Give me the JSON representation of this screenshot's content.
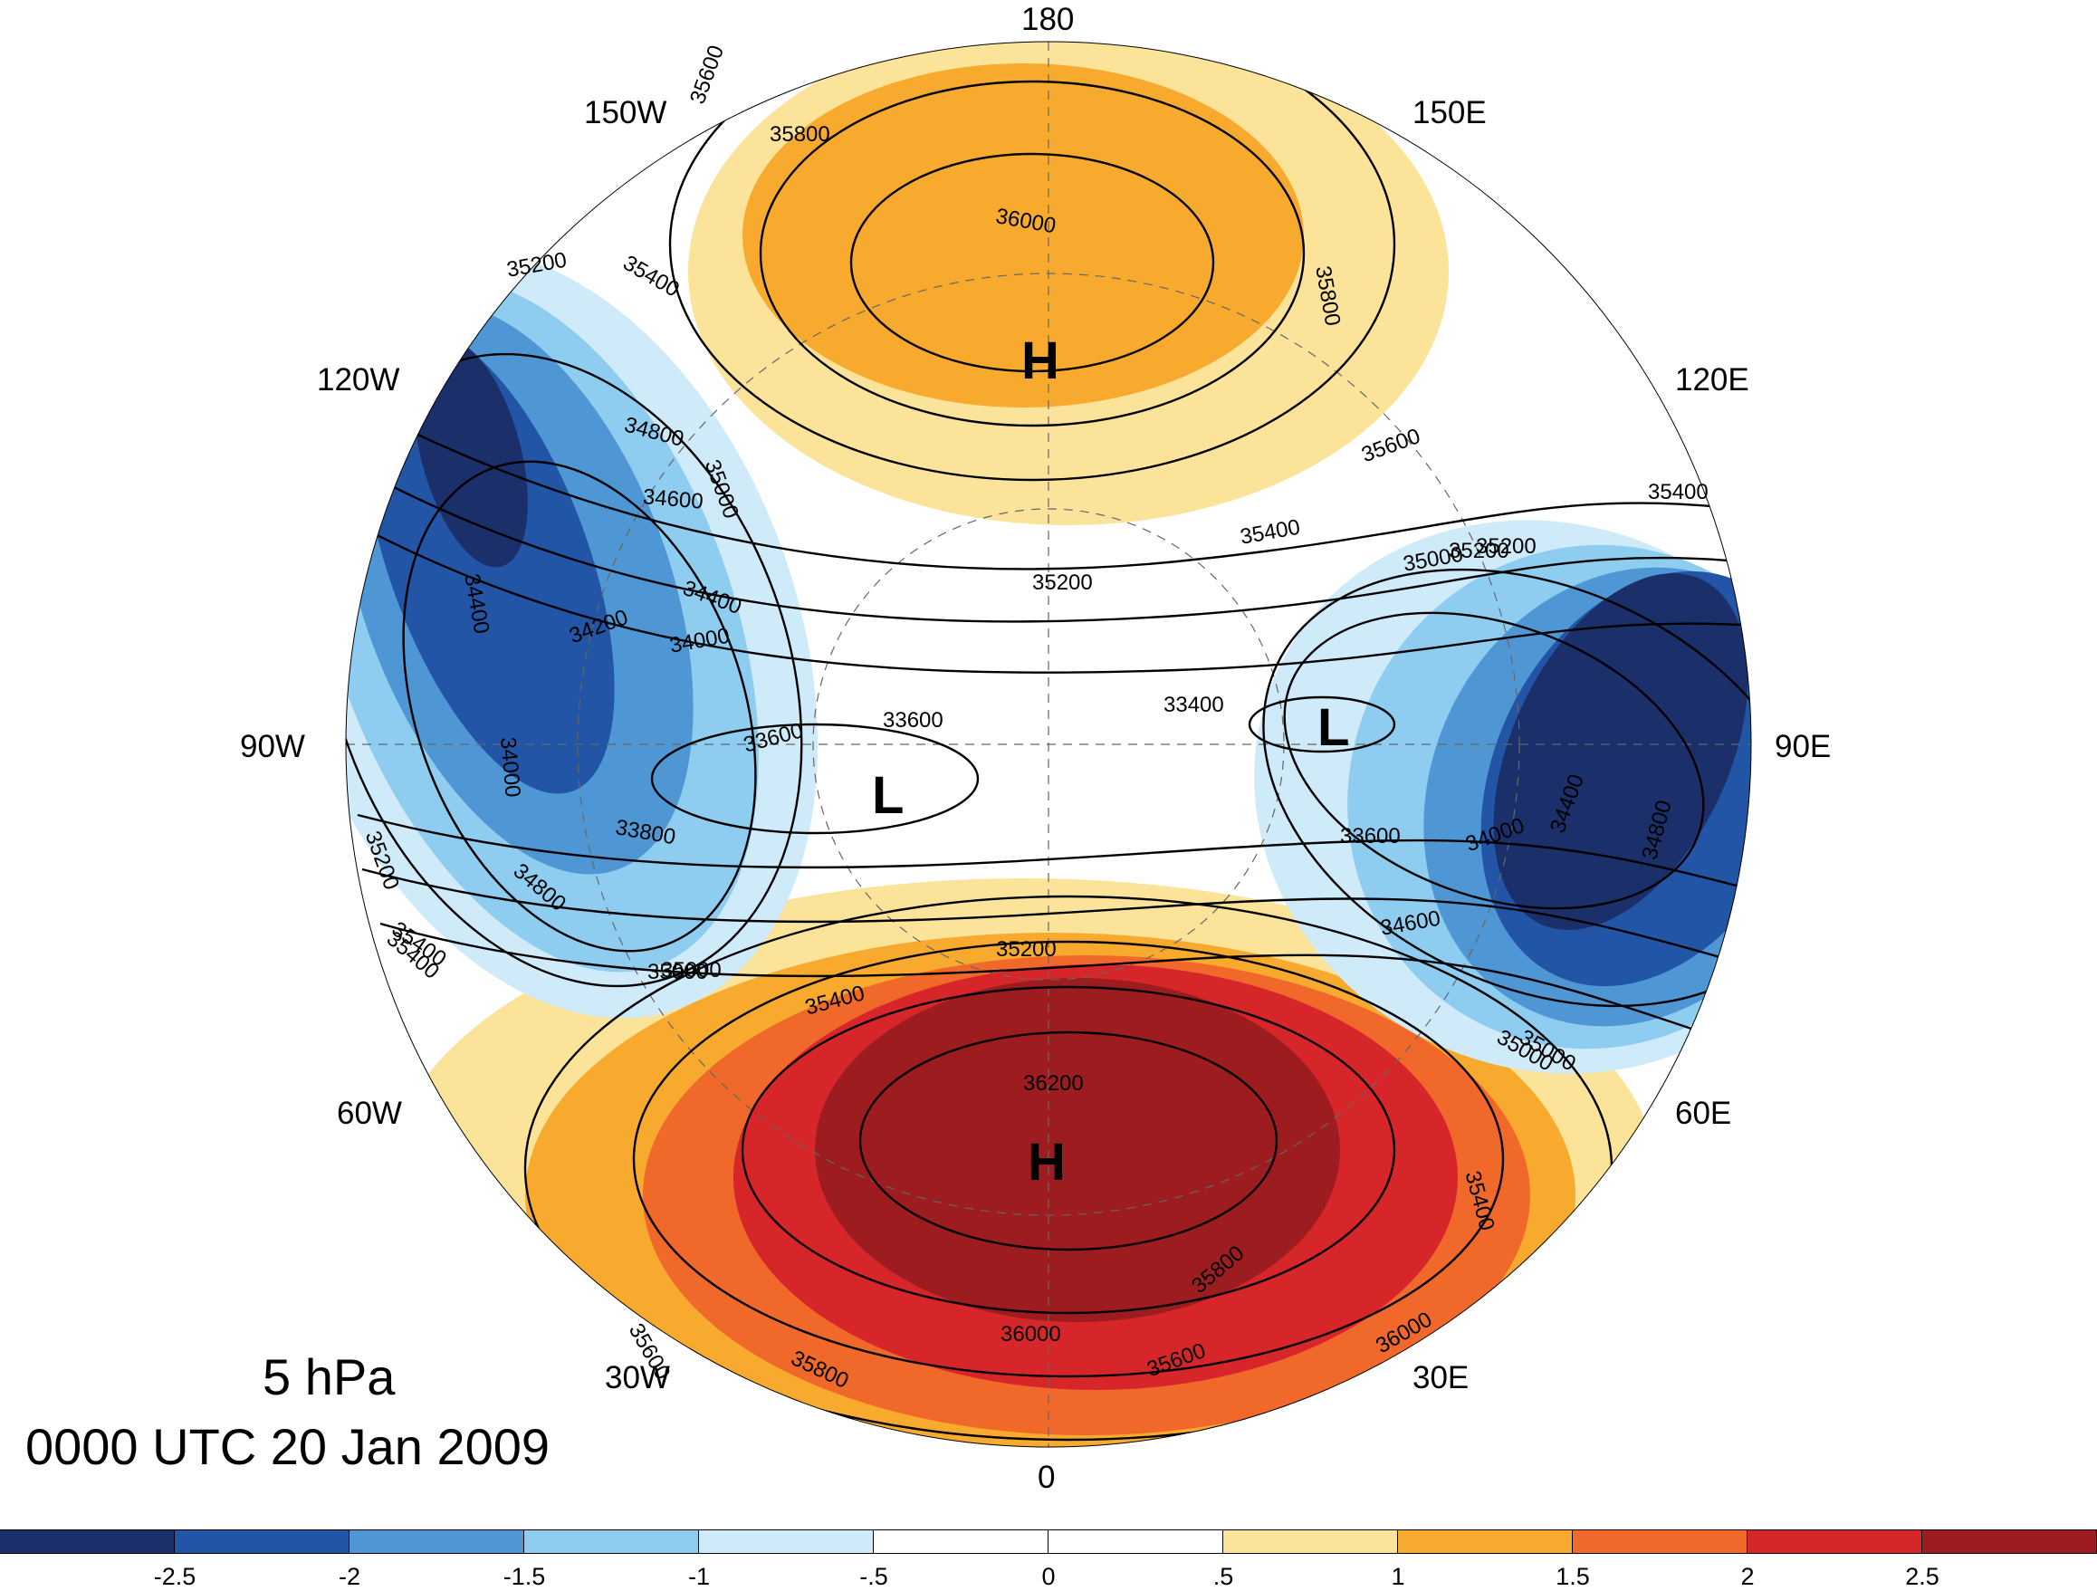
{
  "title": {
    "level": "5 hPa",
    "datetime": "0000 UTC 20 Jan 2009"
  },
  "longitude_labels": {
    "n180": "180",
    "w150": "150W",
    "e150": "150E",
    "w120": "120W",
    "e120": "120E",
    "w90": "90W",
    "e90": "90E",
    "w60": "60W",
    "e60": "60E",
    "w30": "30W",
    "e30": "30E",
    "s0": "0"
  },
  "pressure_centers": {
    "high_pacific": "H",
    "high_atlantic": "H",
    "low_west": "L",
    "low_east": "L"
  },
  "contour_labels": [
    "35600",
    "35800",
    "36000",
    "35800",
    "35400",
    "35200",
    "34800",
    "35000",
    "34600",
    "34400",
    "34200",
    "34000",
    "34400",
    "34000",
    "33600",
    "33600",
    "33400",
    "33800",
    "35600",
    "35400",
    "35200",
    "35000",
    "35200",
    "35400",
    "35200",
    "33600",
    "34000",
    "34400",
    "34800",
    "34600",
    "35000",
    "35400",
    "35200",
    "35400",
    "36200",
    "36000",
    "35800",
    "35600",
    "35600",
    "36000",
    "35800",
    "35400",
    "35000",
    "34800",
    "35200",
    "35400",
    "35000",
    "35000"
  ],
  "colorbar": {
    "ticks": [
      "-2.5",
      "-2",
      "-1.5",
      "-1",
      "-.5",
      "0",
      ".5",
      "1",
      "1.5",
      "2",
      "2.5"
    ],
    "colors": [
      "#1b2f6b",
      "#2255a6",
      "#4f97d4",
      "#8ecdf0",
      "#cfeaf8",
      "#ffffff",
      "#ffffff",
      "#fbe49a",
      "#f8aa2e",
      "#f0682a",
      "#d7262a",
      "#9c1c1f"
    ]
  },
  "shading_colors": {
    "strong_positive": "#9c1c1f",
    "positive2": "#d7262a",
    "positive15": "#f0682a",
    "positive1": "#f8aa2e",
    "positive05": "#fbe49a",
    "negative05": "#cfeaf8",
    "negative1": "#8ecdf0",
    "negative15": "#4f97d4",
    "negative2": "#2255a6",
    "strong_negative": "#1b2f6b"
  }
}
